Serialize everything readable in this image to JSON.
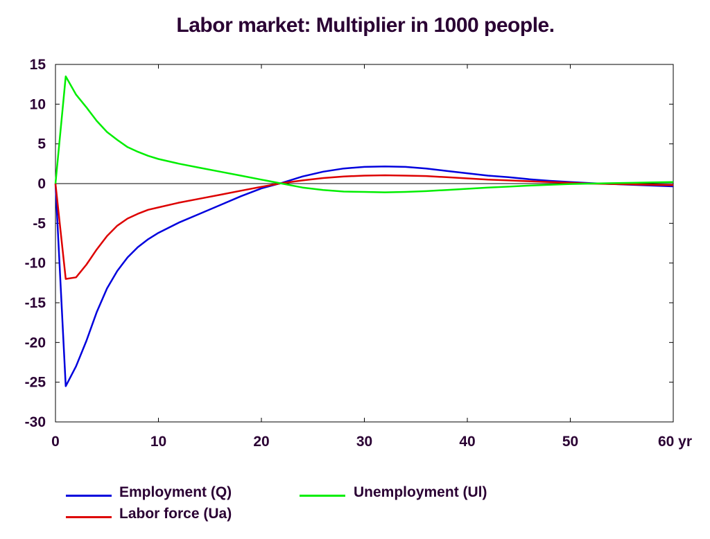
{
  "chart_data": {
    "type": "line",
    "title": "Labor market: Multiplier in 1000 people.",
    "xlabel": "",
    "ylabel": "",
    "xlim": [
      0,
      60
    ],
    "ylim": [
      -30,
      15
    ],
    "x_ticks": [
      0,
      10,
      20,
      30,
      40,
      50,
      60
    ],
    "x_tick_labels": [
      "0",
      "10",
      "20",
      "30",
      "40",
      "50",
      "60 yr"
    ],
    "y_ticks": [
      15,
      10,
      5,
      0,
      -5,
      -10,
      -15,
      -20,
      -25,
      -30
    ],
    "y_tick_labels": [
      "15",
      "10",
      "5",
      "0",
      "-5",
      "-10",
      "-15",
      "-20",
      "-25",
      "-30"
    ],
    "grid": false,
    "zero_line": true,
    "legend_position": "bottom",
    "series": [
      {
        "name": "Employment (Q)",
        "color": "#0000dd",
        "x": [
          0,
          1,
          2,
          3,
          4,
          5,
          6,
          7,
          8,
          9,
          10,
          12,
          14,
          16,
          18,
          20,
          22,
          24,
          26,
          28,
          30,
          32,
          34,
          36,
          38,
          40,
          42,
          44,
          46,
          48,
          50,
          52,
          54,
          56,
          58,
          60
        ],
        "y": [
          0,
          -25.5,
          -23,
          -19.8,
          -16.2,
          -13.2,
          -11,
          -9.3,
          -8,
          -7,
          -6.2,
          -4.9,
          -3.8,
          -2.7,
          -1.6,
          -0.6,
          0.1,
          0.9,
          1.5,
          1.9,
          2.1,
          2.15,
          2.1,
          1.9,
          1.6,
          1.3,
          1.0,
          0.8,
          0.55,
          0.35,
          0.2,
          0.05,
          -0.05,
          -0.15,
          -0.25,
          -0.35
        ]
      },
      {
        "name": "Labor force (Ua)",
        "color": "#dd0000",
        "x": [
          0,
          1,
          2,
          3,
          4,
          5,
          6,
          7,
          8,
          9,
          10,
          12,
          14,
          16,
          18,
          20,
          22,
          24,
          26,
          28,
          30,
          32,
          34,
          36,
          38,
          40,
          42,
          44,
          46,
          48,
          50,
          52,
          54,
          56,
          58,
          60
        ],
        "y": [
          0,
          -12,
          -11.8,
          -10.2,
          -8.3,
          -6.6,
          -5.3,
          -4.4,
          -3.8,
          -3.3,
          -3.0,
          -2.4,
          -1.9,
          -1.4,
          -0.9,
          -0.4,
          0.05,
          0.4,
          0.7,
          0.9,
          1.0,
          1.05,
          1.0,
          0.95,
          0.8,
          0.65,
          0.5,
          0.4,
          0.3,
          0.2,
          0.1,
          0.0,
          -0.05,
          -0.1,
          -0.15,
          -0.2
        ]
      },
      {
        "name": "Unemployment (Ul)",
        "color": "#00ee00",
        "x": [
          0,
          1,
          2,
          3,
          4,
          5,
          6,
          7,
          8,
          9,
          10,
          12,
          14,
          16,
          18,
          20,
          22,
          24,
          26,
          28,
          30,
          32,
          34,
          36,
          38,
          40,
          42,
          44,
          46,
          48,
          50,
          52,
          54,
          56,
          58,
          60
        ],
        "y": [
          0,
          13.5,
          11.2,
          9.6,
          7.9,
          6.5,
          5.5,
          4.6,
          4.0,
          3.5,
          3.1,
          2.5,
          2.0,
          1.5,
          1.0,
          0.5,
          0.0,
          -0.5,
          -0.8,
          -1.0,
          -1.05,
          -1.1,
          -1.05,
          -0.95,
          -0.8,
          -0.65,
          -0.5,
          -0.38,
          -0.25,
          -0.15,
          -0.05,
          0.0,
          0.05,
          0.1,
          0.15,
          0.2
        ]
      }
    ]
  }
}
